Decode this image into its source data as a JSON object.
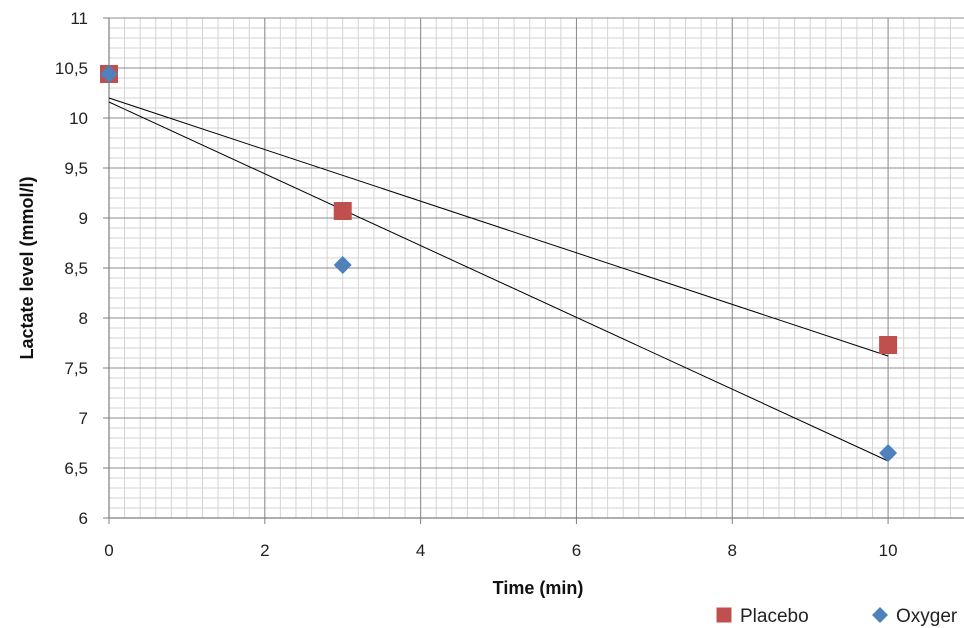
{
  "chart_data": {
    "type": "scatter",
    "xlabel": "Time (min)",
    "ylabel": "Lactate level (mmol/l)",
    "xlim": [
      0,
      11
    ],
    "ylim": [
      6,
      11
    ],
    "x_ticks": [
      0,
      2,
      4,
      6,
      8,
      10
    ],
    "x_tick_labels": [
      "0",
      "2",
      "4",
      "6",
      "8",
      "10"
    ],
    "y_ticks": [
      6,
      6.5,
      7,
      7.5,
      8,
      8.5,
      9,
      9.5,
      10,
      10.5,
      11
    ],
    "y_tick_labels": [
      "6",
      "6,5",
      "7",
      "7,5",
      "8",
      "8,5",
      "9",
      "9,5",
      "10",
      "10,5",
      "11"
    ],
    "grid": true,
    "legend_position": "bottom-right",
    "series": [
      {
        "name": "Placebo",
        "marker": "square",
        "color": "#C0504D",
        "x": [
          0,
          3,
          10
        ],
        "y": [
          10.44,
          9.07,
          7.73
        ],
        "trendline": {
          "x": [
            0,
            10
          ],
          "y": [
            10.2,
            7.62
          ]
        }
      },
      {
        "name": "Oxyger",
        "marker": "diamond",
        "color": "#4F81BD",
        "x": [
          0,
          3,
          10
        ],
        "y": [
          10.44,
          8.53,
          6.65
        ],
        "trendline": {
          "x": [
            0,
            10
          ],
          "y": [
            10.16,
            6.57
          ]
        }
      }
    ]
  }
}
